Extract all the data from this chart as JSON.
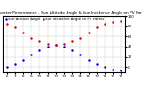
{
  "title": "Solar PV/Inverter Performance - Sun Altitude Angle & Sun Incidence Angle on PV Panels",
  "blue_label": "Sun Altitude Angle",
  "red_label": "Sun Incidence Angle on PV Panels",
  "bg_color": "#ffffff",
  "grid_color": "#888888",
  "x_times": [
    6,
    7,
    8,
    9,
    10,
    11,
    12,
    13,
    14,
    15,
    16,
    17,
    18,
    19,
    20
  ],
  "blue_y": [
    0,
    5,
    14,
    24,
    33,
    40,
    43,
    40,
    33,
    24,
    14,
    5,
    0,
    -4,
    -6
  ],
  "red_y": [
    85,
    78,
    68,
    57,
    50,
    45,
    43,
    45,
    50,
    57,
    68,
    78,
    85,
    88,
    90
  ],
  "ylim": [
    -10,
    100
  ],
  "xlim": [
    5.5,
    20.5
  ],
  "x_ticks": [
    6,
    7,
    8,
    9,
    10,
    11,
    12,
    13,
    14,
    15,
    16,
    17,
    18,
    19,
    20
  ],
  "y_ticks": [
    0,
    20,
    40,
    60,
    80,
    100
  ],
  "title_fontsize": 3.2,
  "tick_fontsize": 3.0,
  "legend_fontsize": 2.8,
  "dot_size": 1.5,
  "blue_color": "#0000dd",
  "red_color": "#dd0000"
}
